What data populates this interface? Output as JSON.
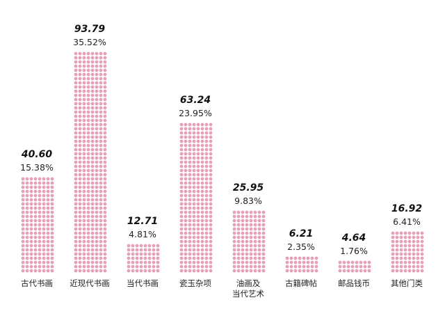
{
  "chart_data": {
    "type": "bar",
    "categories": [
      [
        "古代书画"
      ],
      [
        "近现代书画"
      ],
      [
        "当代书画"
      ],
      [
        "瓷玉杂项"
      ],
      [
        "油画及",
        "当代艺术"
      ],
      [
        "古籍碑帖"
      ],
      [
        "邮品钱币"
      ],
      [
        "其他门类"
      ]
    ],
    "values": [
      40.6,
      93.79,
      12.71,
      63.24,
      25.95,
      6.21,
      4.64,
      16.92
    ],
    "value_labels": [
      "40.60",
      "93.79",
      "12.71",
      "63.24",
      "25.95",
      "6.21",
      "4.64",
      "16.92"
    ],
    "percent_labels": [
      "15.38%",
      "35.52%",
      "4.81%",
      "23.95%",
      "9.83%",
      "2.35%",
      "1.76%",
      "6.41%"
    ],
    "title": "",
    "xlabel": "",
    "ylabel": "",
    "ylim": [
      0,
      93.79
    ],
    "grid": false,
    "colors": {
      "dot": "#e8a0b8",
      "value_text": "#111111",
      "label_text": "#222222"
    }
  }
}
